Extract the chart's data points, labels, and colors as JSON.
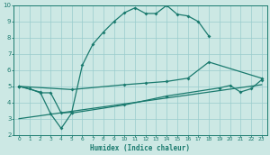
{
  "xlabel": "Humidex (Indice chaleur)",
  "bg_color": "#cce8e4",
  "grid_color": "#99cccc",
  "line_color": "#1a7a6e",
  "xlim": [
    -0.5,
    23.5
  ],
  "ylim": [
    2,
    10
  ],
  "xticks": [
    0,
    1,
    2,
    3,
    4,
    5,
    6,
    7,
    8,
    9,
    10,
    11,
    12,
    13,
    14,
    15,
    16,
    17,
    18,
    19,
    20,
    21,
    22,
    23
  ],
  "yticks": [
    2,
    3,
    4,
    5,
    6,
    7,
    8,
    9,
    10
  ],
  "line1_x": [
    0,
    1,
    2,
    3,
    4,
    5,
    6,
    7,
    8,
    9,
    10,
    11,
    12,
    13,
    14,
    15,
    16,
    17,
    18
  ],
  "line1_y": [
    5.0,
    4.85,
    4.6,
    4.6,
    3.35,
    3.4,
    6.3,
    7.6,
    8.35,
    9.0,
    9.55,
    9.85,
    9.5,
    9.5,
    10.0,
    9.45,
    9.35,
    9.0,
    8.1
  ],
  "line2_x": [
    0,
    5,
    10,
    12,
    14,
    16,
    18,
    23
  ],
  "line2_y": [
    5.0,
    4.8,
    5.1,
    5.2,
    5.3,
    5.5,
    6.5,
    5.5
  ],
  "line3_x": [
    0,
    2,
    3,
    4,
    5,
    10,
    14,
    19,
    20,
    21,
    22,
    23
  ],
  "line3_y": [
    5.0,
    4.65,
    3.3,
    2.4,
    3.35,
    3.85,
    4.4,
    4.9,
    5.05,
    4.65,
    4.85,
    5.4
  ],
  "line4_x": [
    0,
    23
  ],
  "line4_y": [
    3.0,
    5.1
  ]
}
